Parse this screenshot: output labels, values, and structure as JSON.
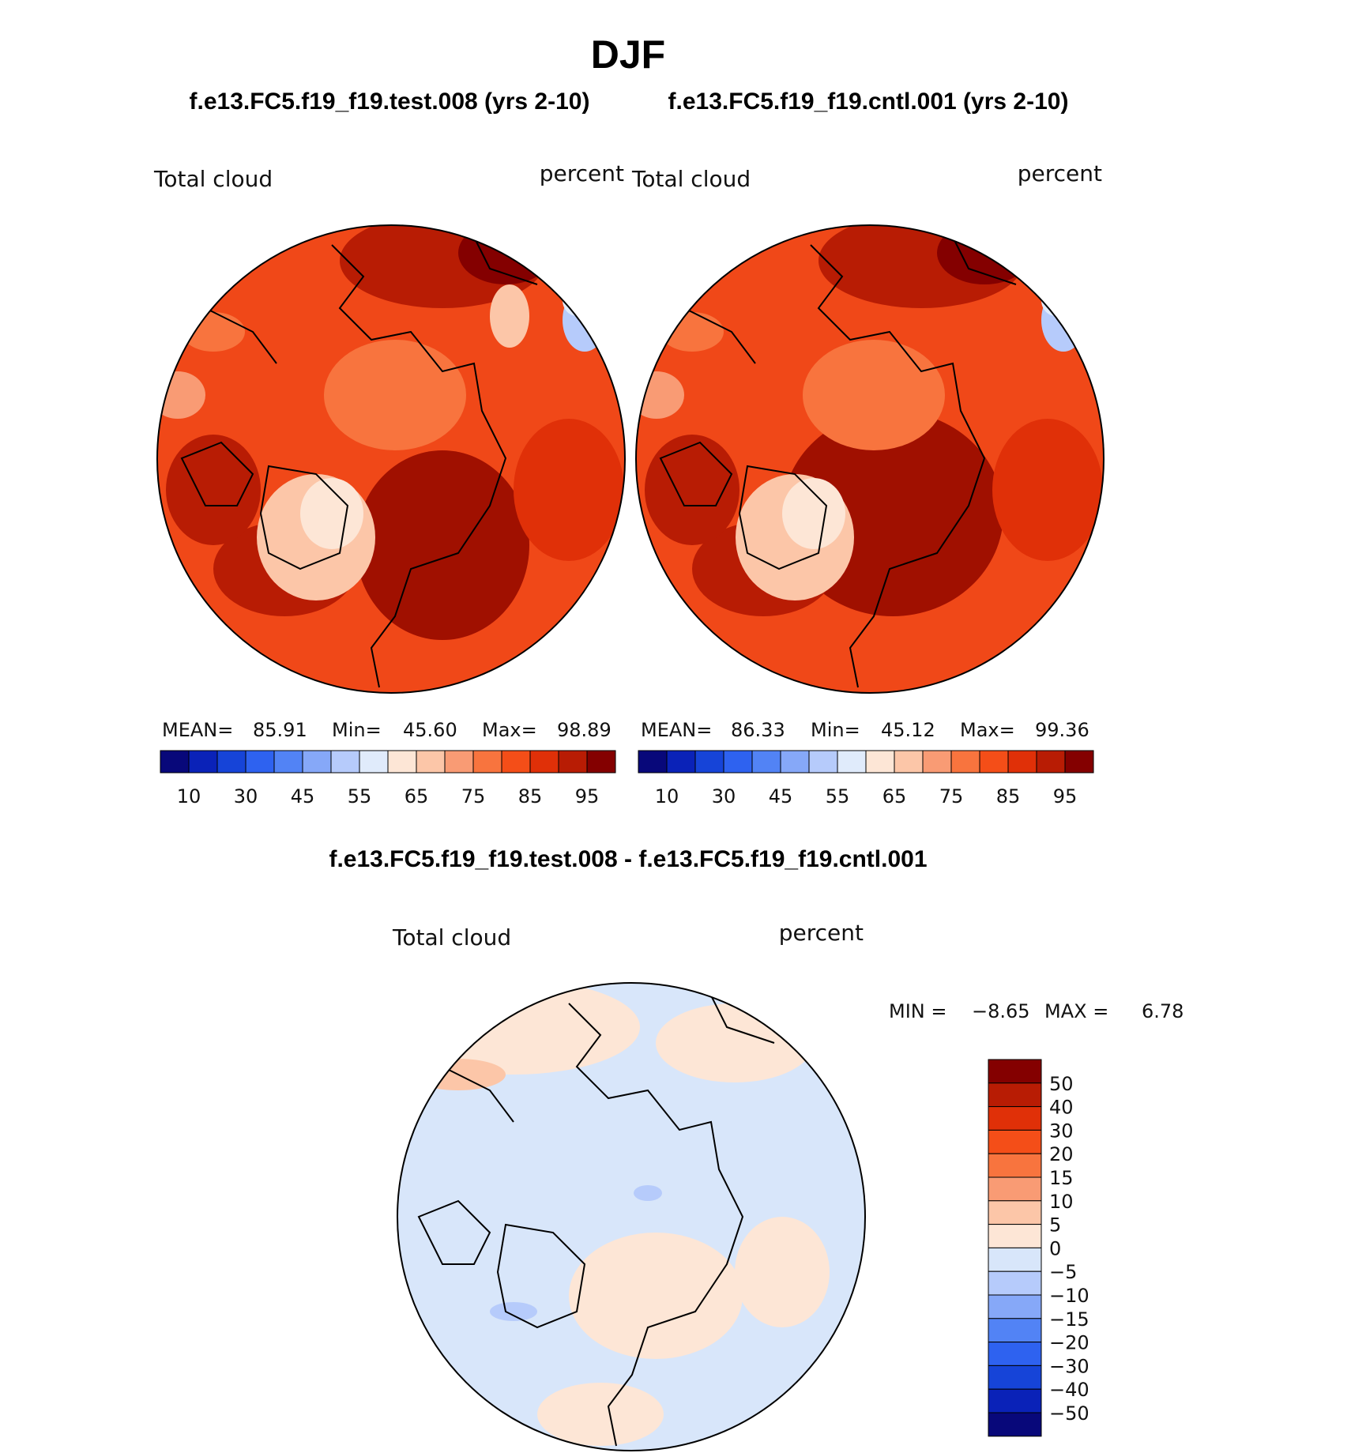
{
  "page_title": "DJF",
  "panels": [
    {
      "case_title": "f.e13.FC5.f19_f19.test.008 (yrs 2-10)",
      "variable": "Total cloud",
      "units": "percent",
      "stats": {
        "mean_label": "MEAN=",
        "mean": "85.91",
        "min_label": "Min=",
        "min": "45.60",
        "max_label": "Max=",
        "max": "98.89"
      }
    },
    {
      "case_title": "f.e13.FC5.f19_f19.cntl.001 (yrs 2-10)",
      "variable": "Total cloud",
      "units": "percent",
      "stats": {
        "mean_label": "MEAN=",
        "mean": "86.33",
        "min_label": "Min=",
        "min": "45.12",
        "max_label": "Max=",
        "max": "99.36"
      }
    }
  ],
  "abs_colorbar": {
    "colors": [
      "#08087a",
      "#0a22b8",
      "#1644d8",
      "#2e62f0",
      "#5283f5",
      "#86a8f8",
      "#b6cbfb",
      "#e0ebfb",
      "#fde6d6",
      "#fcc6a8",
      "#f99b74",
      "#f8743e",
      "#f44e18",
      "#e03008",
      "#b81c04",
      "#840000"
    ],
    "tick_labels": [
      "10",
      "30",
      "45",
      "55",
      "65",
      "75",
      "85",
      "95"
    ]
  },
  "diff": {
    "title": "f.e13.FC5.f19_f19.test.008 - f.e13.FC5.f19_f19.cntl.001",
    "variable": "Total cloud",
    "units": "percent",
    "min_label": "MIN =",
    "min": "−8.65",
    "max_label": "MAX =",
    "max": "6.78",
    "colorbar": {
      "colors_top_to_bottom": [
        "#840000",
        "#b81c04",
        "#e03008",
        "#f44e18",
        "#f8743e",
        "#f99b74",
        "#fcc6a8",
        "#fde6d6",
        "#d8e6fa",
        "#b6cbfb",
        "#86a8f8",
        "#5283f5",
        "#2e62f0",
        "#1644d8",
        "#0a22b8",
        "#08087a"
      ],
      "tick_labels": [
        "50",
        "40",
        "30",
        "20",
        "15",
        "10",
        "5",
        "0",
        "−5",
        "−10",
        "−15",
        "−20",
        "−30",
        "−40",
        "−50"
      ]
    }
  }
}
